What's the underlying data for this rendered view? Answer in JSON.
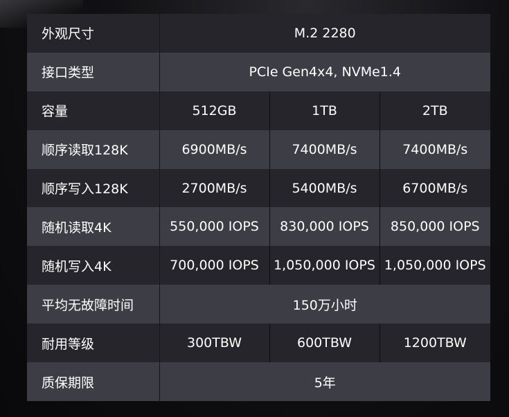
{
  "rows": [
    {
      "label": "外观尺寸",
      "values": [
        "M.2 2280"
      ]
    },
    {
      "label": "接口类型",
      "values": [
        "PCIe Gen4x4, NVMe1.4"
      ]
    },
    {
      "label": "容量",
      "values": [
        "512GB",
        "1TB",
        "2TB"
      ]
    },
    {
      "label": "顺序读取128K",
      "values": [
        "6900MB/s",
        "7400MB/s",
        "7400MB/s"
      ]
    },
    {
      "label": "顺序写入128K",
      "values": [
        "2700MB/s",
        "5400MB/s",
        "6700MB/s"
      ]
    },
    {
      "label": "随机读取4K",
      "values": [
        "550,000 IOPS",
        "830,000 IOPS",
        "850,000 IOPS"
      ]
    },
    {
      "label": "随机写入4K",
      "values": [
        "700,000 IOPS",
        "1,050,000 IOPS",
        "1,050,000 IOPS"
      ]
    },
    {
      "label": "平均无故障时间",
      "values": [
        "150万小时"
      ]
    },
    {
      "label": "耐用等级",
      "values": [
        "300TBW",
        "600TBW",
        "1200TBW"
      ]
    },
    {
      "label": "质保期限",
      "values": [
        "5年"
      ]
    }
  ],
  "colors": {
    "row_dark": "#25252b",
    "row_light": "#3d3d46",
    "text": "#ffffff"
  }
}
